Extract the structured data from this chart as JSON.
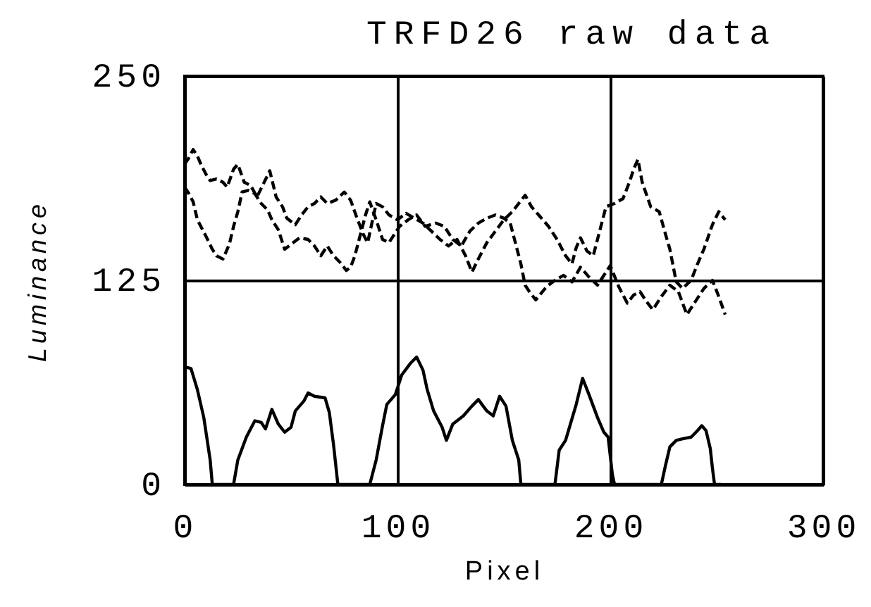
{
  "chart_data": {
    "type": "line",
    "title": "TRFD26 raw data",
    "xlabel": "Pixel",
    "ylabel": "Luminance",
    "xlim": [
      0,
      300
    ],
    "xticks": [
      0,
      100,
      200,
      300
    ],
    "ylim": [
      0,
      250
    ],
    "yticks": [
      0,
      125,
      250
    ],
    "grid": true,
    "series": [
      {
        "color": "#000000",
        "line_style": "dashed",
        "x": [
          0,
          2,
          4,
          6,
          8,
          10,
          12,
          15,
          18,
          20,
          23,
          25,
          28,
          31,
          34,
          37,
          40,
          43,
          46,
          48,
          52,
          55,
          58,
          61,
          64,
          67,
          71,
          75,
          78,
          81,
          84,
          86,
          88,
          90,
          93,
          96,
          100,
          104,
          108,
          112,
          116,
          120,
          124,
          128,
          132,
          135,
          138,
          142,
          146,
          150,
          154,
          157,
          160,
          163,
          167,
          171,
          175,
          179,
          182,
          184,
          186,
          189,
          192,
          195,
          198,
          202,
          206,
          209,
          211,
          213,
          215,
          219,
          223,
          226,
          228,
          231,
          234,
          238,
          241,
          244,
          248,
          251,
          254
        ],
        "values": [
          196,
          200,
          205,
          201,
          195,
          190,
          186,
          187,
          185,
          182,
          193,
          196,
          185,
          183,
          176,
          184,
          192,
          176,
          170,
          163,
          159,
          165,
          170,
          172,
          176,
          172,
          174,
          179,
          174,
          163,
          153,
          148,
          160,
          172,
          170,
          165,
          162,
          166,
          163,
          160,
          155,
          150,
          146,
          150,
          140,
          130,
          138,
          148,
          155,
          162,
          167,
          172,
          177,
          170,
          164,
          158,
          150,
          140,
          135,
          145,
          151,
          143,
          140,
          155,
          170,
          172,
          175,
          185,
          193,
          199,
          185,
          170,
          167,
          153,
          144,
          124,
          120,
          125,
          135,
          144,
          159,
          167,
          162
        ]
      },
      {
        "color": "#000000",
        "line_style": "dashed",
        "x": [
          0,
          2,
          4,
          6,
          8,
          10,
          13,
          15,
          18,
          21,
          23,
          25,
          27,
          30,
          33,
          36,
          39,
          41,
          44,
          47,
          50,
          54,
          58,
          61,
          64,
          67,
          70,
          73,
          76,
          78,
          80,
          83,
          85,
          87,
          90,
          93,
          96,
          98,
          101,
          105,
          109,
          113,
          118,
          122,
          126,
          130,
          134,
          138,
          142,
          146,
          150,
          153,
          156,
          158,
          160,
          162,
          165,
          170,
          174,
          178,
          182,
          186,
          190,
          194,
          197,
          200,
          204,
          208,
          211,
          214,
          217,
          220,
          224,
          228,
          232,
          236,
          240,
          244,
          248,
          251,
          254
        ],
        "values": [
          182,
          178,
          173,
          162,
          157,
          152,
          144,
          140,
          138,
          147,
          158,
          167,
          179,
          180,
          178,
          172,
          168,
          162,
          156,
          144,
          147,
          151,
          150,
          146,
          140,
          146,
          140,
          136,
          131,
          133,
          140,
          155,
          165,
          173,
          162,
          150,
          148,
          152,
          158,
          162,
          165,
          158,
          160,
          158,
          150,
          146,
          155,
          160,
          163,
          165,
          163,
          160,
          145,
          135,
          122,
          118,
          113,
          121,
          125,
          128,
          124,
          133,
          127,
          122,
          128,
          134,
          121,
          111,
          116,
          118,
          112,
          107,
          115,
          122,
          118,
          104,
          112,
          120,
          125,
          115,
          104
        ]
      },
      {
        "color": "#000000",
        "line_style": "solid",
        "x": [
          0,
          3,
          6,
          9,
          12,
          13,
          23,
          25,
          29,
          33,
          36,
          38,
          41,
          44,
          47,
          50,
          52,
          56,
          58,
          61,
          66,
          68,
          70,
          72,
          87,
          90,
          93,
          95,
          99,
          102,
          106,
          109,
          112,
          114,
          117,
          121,
          123,
          126,
          131,
          135,
          138,
          142,
          145,
          148,
          151,
          154,
          157,
          158,
          174,
          176,
          179,
          184,
          187,
          190,
          194,
          197,
          199,
          201,
          202,
          224,
          226,
          228,
          231,
          234,
          238,
          241,
          243,
          245,
          247,
          248,
          249,
          252
        ],
        "values": [
          72,
          71,
          58,
          41,
          15,
          0,
          0,
          15,
          29,
          39,
          38,
          34,
          46,
          37,
          32,
          35,
          45,
          51,
          56,
          54,
          53,
          44,
          24,
          0,
          0,
          15,
          36,
          49,
          55,
          67,
          74,
          78,
          70,
          58,
          45,
          35,
          27,
          37,
          42,
          48,
          52,
          45,
          42,
          54,
          48,
          27,
          15,
          0,
          0,
          21,
          27,
          49,
          65,
          55,
          41,
          32,
          29,
          6,
          0,
          0,
          12,
          23,
          27,
          28,
          29,
          33,
          36,
          33,
          22,
          10,
          0,
          0
        ]
      }
    ]
  }
}
